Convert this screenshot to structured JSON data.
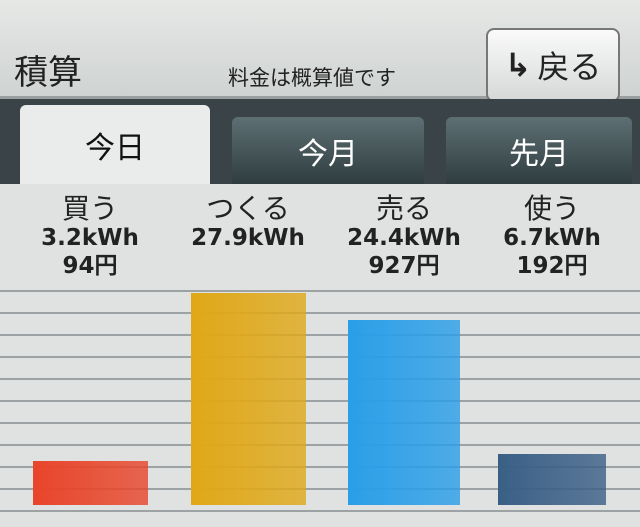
{
  "header": {
    "title": "積算",
    "note": "料金は概算値です",
    "back_label": "戻る",
    "back_icon": "return-arrow-icon"
  },
  "tabs": [
    {
      "label": "今日",
      "active": true
    },
    {
      "label": "今月",
      "active": false
    },
    {
      "label": "先月",
      "active": false
    }
  ],
  "chart_data": {
    "type": "bar",
    "categories": [
      "買う",
      "つくる",
      "売る",
      "使う"
    ],
    "values_kwh": [
      3.2,
      27.9,
      24.4,
      6.7
    ],
    "energy_labels": [
      "3.2kWh",
      "27.9kWh",
      "24.4kWh",
      "6.7kWh"
    ],
    "cost_labels": [
      "94円",
      "",
      "927円",
      "192円"
    ],
    "colors": [
      "#e8452a",
      "#e0a818",
      "#2a9ee8",
      "#3a5f86"
    ],
    "grid": true
  }
}
